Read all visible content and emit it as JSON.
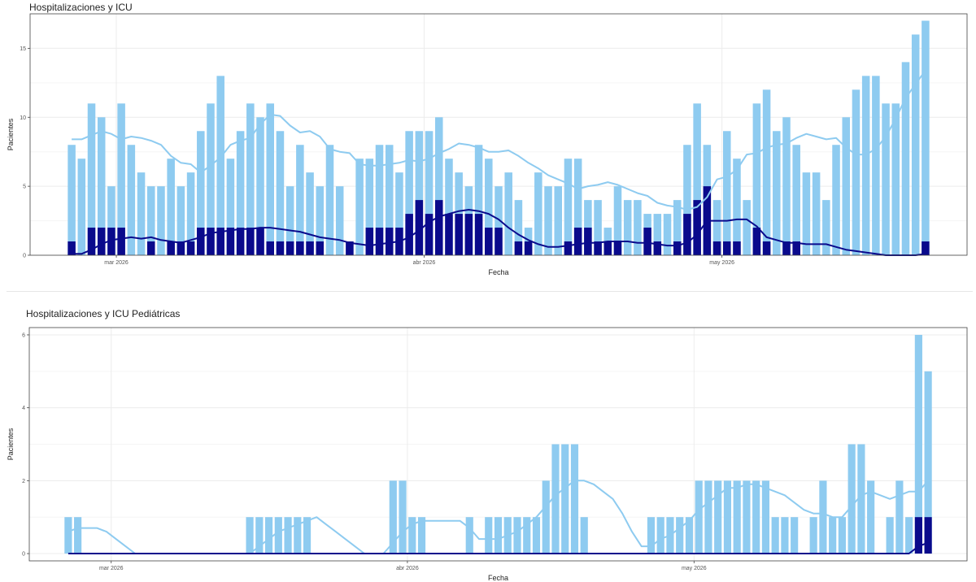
{
  "chart_data": [
    {
      "type": "bar",
      "title": "Hospitalizaciones y ICU",
      "xlabel": "Fecha",
      "ylabel": "Pacientes",
      "ylim": [
        0,
        17.5
      ],
      "yticks": [
        0,
        5,
        10,
        15
      ],
      "x_tick_labels": [
        {
          "day": 5,
          "label": "mar 2026"
        },
        {
          "day": 36,
          "label": "abr 2026"
        },
        {
          "day": 66,
          "label": "may 2026"
        }
      ],
      "grid": true,
      "colors": {
        "hospitalizations": "#8ecbf0",
        "icu": "#0a0a8c",
        "hosp_line": "#8ecbf0",
        "icu_line": "#0a0a8c"
      },
      "series": [
        {
          "values": [
            8,
            7,
            11,
            10,
            5,
            11,
            8,
            6,
            5,
            5,
            7,
            5,
            6,
            9,
            11,
            13,
            7,
            9,
            11,
            10,
            11,
            9,
            5,
            8,
            6,
            5,
            8,
            5,
            1,
            7,
            7,
            8,
            8,
            6,
            9,
            9,
            9,
            10,
            7,
            6,
            5,
            8,
            7,
            5,
            6,
            4,
            2,
            6,
            5,
            5,
            7,
            7,
            4,
            4,
            2,
            5,
            4,
            4,
            3,
            3,
            3,
            4,
            8,
            11,
            8,
            4,
            9,
            7,
            4,
            11,
            12,
            9,
            10,
            8,
            6,
            6,
            4,
            8,
            10,
            12,
            13,
            13,
            11,
            11,
            14,
            16,
            17
          ]
        },
        {
          "values": [
            1,
            0,
            2,
            2,
            2,
            2,
            0,
            0,
            1,
            0,
            1,
            1,
            1,
            2,
            2,
            2,
            2,
            2,
            2,
            2,
            1,
            1,
            1,
            1,
            1,
            1,
            0,
            0,
            1,
            0,
            2,
            2,
            2,
            2,
            3,
            4,
            3,
            4,
            3,
            3,
            3,
            3,
            2,
            2,
            0,
            1,
            1,
            0,
            0,
            0,
            1,
            2,
            2,
            1,
            1,
            1,
            0,
            0,
            2,
            1,
            0,
            1,
            3,
            4,
            5,
            1,
            1,
            1,
            0,
            2,
            1,
            0,
            1,
            1,
            0,
            0,
            0,
            0,
            0,
            0,
            0,
            0,
            0,
            0,
            0,
            0,
            1
          ]
        },
        {
          "values": [
            8.4,
            8.4,
            8.7,
            9.0,
            8.8,
            8.4,
            8.6,
            8.5,
            8.3,
            8.0,
            7.2,
            6.7,
            6.6,
            6.0,
            6.5,
            7.1,
            8.0,
            8.3,
            8.5,
            9.5,
            10.2,
            10.1,
            9.4,
            8.9,
            9.0,
            8.6,
            7.7,
            7.5,
            7.4,
            6.6,
            6.5,
            6.5,
            6.6,
            6.7,
            6.9,
            6.8,
            7.0,
            7.4,
            7.7,
            8.1,
            8.0,
            7.8,
            7.5,
            7.5,
            7.6,
            7.2,
            6.7,
            6.3,
            5.8,
            5.5,
            5.2,
            4.8,
            5.0,
            5.1,
            5.3,
            5.1,
            4.8,
            4.5,
            4.3,
            3.8,
            3.6,
            3.5,
            3.3,
            3.5,
            4.2,
            5.5,
            5.7,
            6.2,
            7.3,
            7.4,
            7.8,
            8.0,
            8.1,
            8.5,
            8.8,
            8.6,
            8.4,
            8.5,
            7.8,
            7.3,
            7.3,
            7.7,
            8.6,
            9.9,
            11.4,
            12.4,
            13.4
          ]
        },
        {
          "values": [
            0.1,
            0.1,
            0.4,
            0.8,
            1.1,
            1.2,
            1.3,
            1.2,
            1.3,
            1.1,
            1.0,
            0.9,
            1.1,
            1.3,
            1.6,
            1.7,
            1.8,
            1.9,
            1.9,
            2.0,
            2.0,
            1.9,
            1.8,
            1.7,
            1.5,
            1.3,
            1.2,
            1.1,
            0.9,
            0.8,
            0.7,
            0.8,
            0.9,
            1.0,
            1.3,
            1.8,
            2.4,
            2.8,
            3.0,
            3.2,
            3.3,
            3.2,
            3.0,
            2.6,
            2.0,
            1.5,
            1.1,
            0.8,
            0.6,
            0.6,
            0.7,
            0.8,
            0.9,
            0.9,
            1.0,
            1.0,
            1.0,
            0.9,
            0.9,
            0.8,
            0.7,
            0.7,
            0.9,
            1.5,
            2.5,
            2.5,
            2.5,
            2.6,
            2.6,
            2.1,
            1.3,
            1.1,
            0.9,
            0.9,
            0.8,
            0.8,
            0.8,
            0.6,
            0.4,
            0.3,
            0.2,
            0.1,
            0.0,
            0.0,
            0.0,
            0.0,
            0.1,
            0.1
          ]
        }
      ]
    },
    {
      "type": "bar",
      "title": "Hospitalizaciones y ICU Pediátricas",
      "xlabel": "Fecha",
      "ylabel": "Pacientes",
      "ylim": [
        -0.2,
        6.2
      ],
      "yticks": [
        0,
        2,
        4,
        6
      ],
      "x_tick_labels": [
        {
          "day": 5,
          "label": "mar 2026"
        },
        {
          "day": 36,
          "label": "abr 2026"
        },
        {
          "day": 66,
          "label": "may 2026"
        }
      ],
      "grid": true,
      "colors": {
        "hospitalizations": "#8ecbf0",
        "icu": "#0a0a8c",
        "hosp_line": "#8ecbf0",
        "icu_line": "#0a0a8c"
      },
      "series": [
        {
          "values": [
            1,
            1,
            0,
            0,
            0,
            0,
            0,
            0,
            0,
            0,
            0,
            0,
            0,
            0,
            0,
            0,
            0,
            0,
            0,
            1,
            1,
            1,
            1,
            1,
            1,
            1,
            0,
            0,
            0,
            0,
            0,
            0,
            0,
            0,
            2,
            2,
            1,
            1,
            0,
            0,
            0,
            0,
            1,
            0,
            1,
            1,
            1,
            1,
            1,
            1,
            2,
            3,
            3,
            3,
            1,
            0,
            0,
            0,
            0,
            0,
            0,
            1,
            1,
            1,
            1,
            1,
            2,
            2,
            2,
            2,
            2,
            2,
            2,
            2,
            1,
            1,
            1,
            0,
            1,
            2,
            1,
            1,
            3,
            3,
            2,
            0,
            1,
            2,
            1,
            6,
            5
          ]
        },
        {
          "values": [
            0,
            0,
            0,
            0,
            0,
            0,
            0,
            0,
            0,
            0,
            0,
            0,
            0,
            0,
            0,
            0,
            0,
            0,
            0,
            0,
            0,
            0,
            0,
            0,
            0,
            0,
            0,
            0,
            0,
            0,
            0,
            0,
            0,
            0,
            0,
            0,
            0,
            0,
            0,
            0,
            0,
            0,
            0,
            0,
            0,
            0,
            0,
            0,
            0,
            0,
            0,
            0,
            0,
            0,
            0,
            0,
            0,
            0,
            0,
            0,
            0,
            0,
            0,
            0,
            0,
            0,
            0,
            0,
            0,
            0,
            0,
            0,
            0,
            0,
            0,
            0,
            0,
            0,
            0,
            0,
            0,
            0,
            0,
            0,
            0,
            0,
            0,
            0,
            0,
            1,
            1
          ]
        },
        {
          "values": [
            0.6,
            0.7,
            0.7,
            0.7,
            0.6,
            0.4,
            0.2,
            0.0,
            0.0,
            0.0,
            0.0,
            0.0,
            0.0,
            0.0,
            0.0,
            0.0,
            0.0,
            0.0,
            0.0,
            0.0,
            0.2,
            0.4,
            0.6,
            0.7,
            0.8,
            0.9,
            1.0,
            0.8,
            0.6,
            0.4,
            0.2,
            0.0,
            0.0,
            0.0,
            0.3,
            0.6,
            0.8,
            0.9,
            0.9,
            0.9,
            0.9,
            0.9,
            0.7,
            0.4,
            0.4,
            0.4,
            0.5,
            0.6,
            0.8,
            1.0,
            1.3,
            1.6,
            1.8,
            2.0,
            2.0,
            1.9,
            1.7,
            1.5,
            1.1,
            0.6,
            0.2,
            0.2,
            0.4,
            0.5,
            0.7,
            0.9,
            1.2,
            1.4,
            1.6,
            1.8,
            1.8,
            1.9,
            1.9,
            1.8,
            1.7,
            1.6,
            1.4,
            1.2,
            1.1,
            1.1,
            1.0,
            1.0,
            1.3,
            1.6,
            1.7,
            1.6,
            1.5,
            1.6,
            1.7,
            1.7,
            2.0,
            2.4
          ]
        },
        {
          "values": [
            0,
            0,
            0,
            0,
            0,
            0,
            0,
            0,
            0,
            0,
            0,
            0,
            0,
            0,
            0,
            0,
            0,
            0,
            0,
            0,
            0,
            0,
            0,
            0,
            0,
            0,
            0,
            0,
            0,
            0,
            0,
            0,
            0,
            0,
            0,
            0,
            0,
            0,
            0,
            0,
            0,
            0,
            0,
            0,
            0,
            0,
            0,
            0,
            0,
            0,
            0,
            0,
            0,
            0,
            0,
            0,
            0,
            0,
            0,
            0,
            0,
            0,
            0,
            0,
            0,
            0,
            0,
            0,
            0,
            0,
            0,
            0,
            0,
            0,
            0,
            0,
            0,
            0,
            0,
            0,
            0,
            0,
            0,
            0,
            0,
            0,
            0,
            0,
            0,
            0.2,
            0.3
          ]
        }
      ]
    }
  ]
}
